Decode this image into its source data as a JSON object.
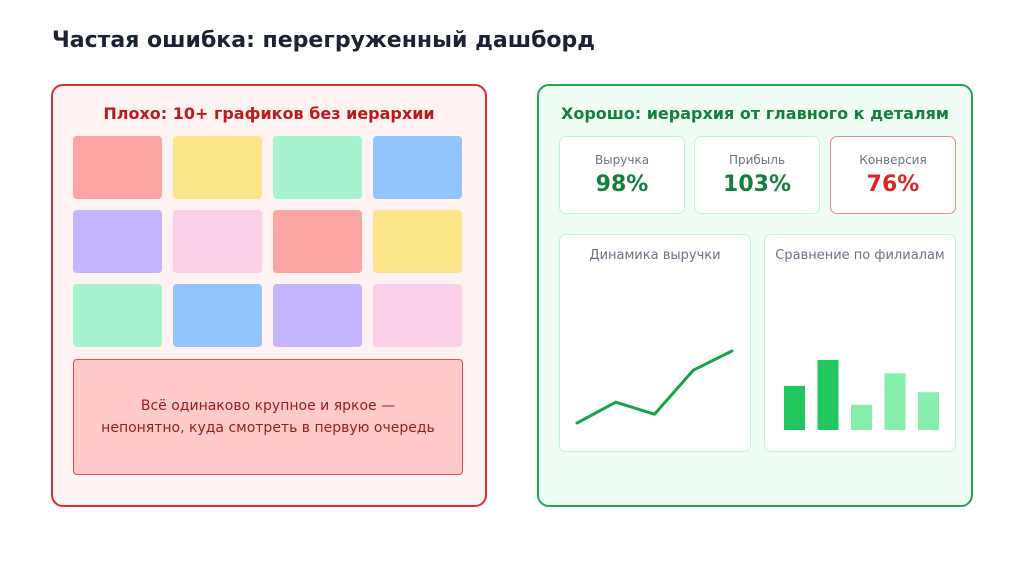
{
  "title": "Частая ошибка: перегруженный дашборд",
  "bad": {
    "heading": "Плохо: 10+ графиков без иерархии",
    "note_line1": "Всё одинаково крупное и яркое —",
    "note_line2": "непонятно, куда смотреть в первую очередь",
    "tiles": [
      "#fca5a5",
      "#fde68a",
      "#a7f3d0",
      "#93c5fd",
      "#c4b5fd",
      "#fbcfe8",
      "#fca5a5",
      "#fde68a",
      "#a7f3d0",
      "#93c5fd",
      "#c4b5fd",
      "#fbcfe8"
    ],
    "colors": {
      "border": "#d62f2f",
      "background": "#fef2f2",
      "heading": "#b91c1c",
      "note_bg": "#fecaca",
      "note_border": "#e05252",
      "note_text": "#991b1b"
    }
  },
  "good": {
    "heading": "Хорошо: иерархия от главного к деталям",
    "kpis": [
      {
        "label": "Выручка",
        "value": "98%",
        "status": "good"
      },
      {
        "label": "Прибыль",
        "value": "103%",
        "status": "good"
      },
      {
        "label": "Конверсия",
        "value": "76%",
        "status": "bad"
      }
    ],
    "colors": {
      "border": "#22a553",
      "background": "#f0fdf4",
      "heading": "#15803d",
      "good_value": "#15803d",
      "bad_value": "#dc2626",
      "card_border": "#bbf7d0",
      "bad_border": "#f08a8a"
    },
    "charts": [
      {
        "type": "line",
        "title": "Динамика выручки",
        "values": [
          1,
          3.6,
          2.1,
          7.6,
          10
        ],
        "ylim": [
          0,
          10
        ],
        "color": "#16a34a"
      },
      {
        "type": "bar",
        "title": "Сравнение по филиалам",
        "values": [
          6.3,
          10,
          3.6,
          8.1,
          5.4
        ],
        "ylim": [
          0,
          10
        ],
        "colors": [
          "#22c55e",
          "#22c55e",
          "#86efac",
          "#86efac",
          "#86efac"
        ]
      }
    ]
  }
}
